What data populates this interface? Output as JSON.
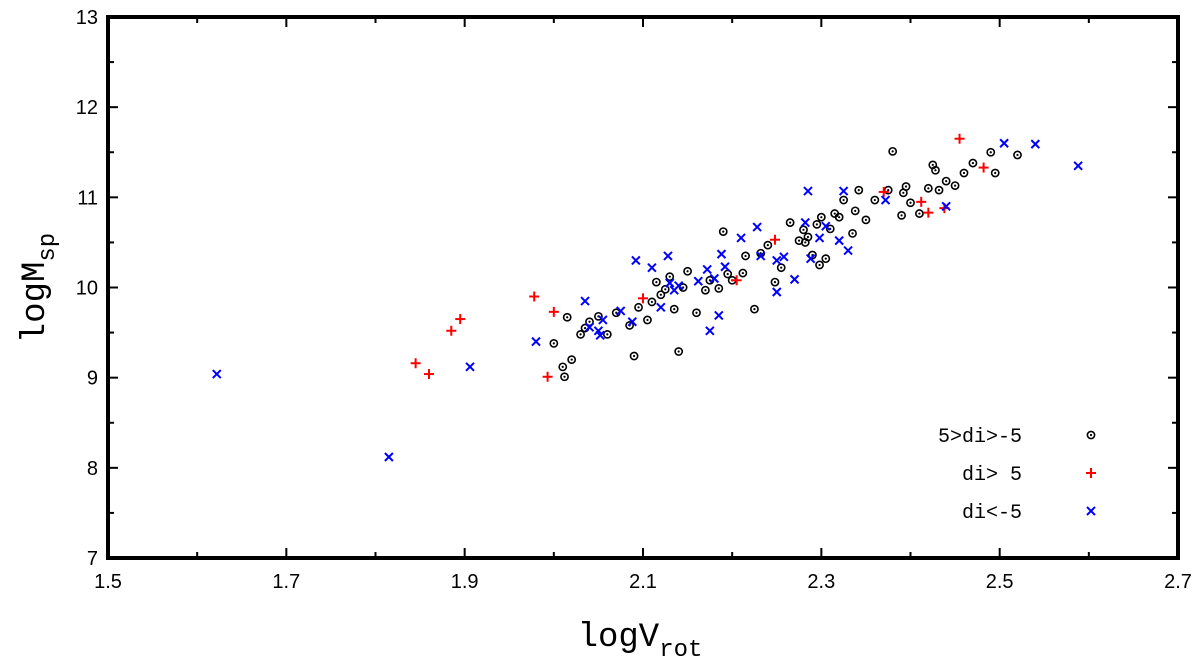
{
  "chart_data": {
    "type": "scatter",
    "title": "",
    "xlabel": {
      "main": "logV",
      "sub": "rot"
    },
    "ylabel": {
      "main": "logM",
      "sub": "sp"
    },
    "xlim": [
      1.5,
      2.7
    ],
    "ylim": [
      7,
      13
    ],
    "xticks": [
      "1.5",
      "1.7",
      "1.9",
      "2.1",
      "2.3",
      "2.5",
      "2.7"
    ],
    "yticks": [
      "7",
      "8",
      "9",
      "10",
      "11",
      "12",
      "13"
    ],
    "grid": false,
    "legend_position": "bottom-right",
    "series": [
      {
        "name": "5>di>-5",
        "marker": "circle-dot",
        "color": "#000000",
        "points": [
          [
            2.0,
            9.38
          ],
          [
            2.01,
            9.12
          ],
          [
            2.012,
            9.01
          ],
          [
            2.015,
            9.67
          ],
          [
            2.02,
            9.2
          ],
          [
            2.03,
            9.48
          ],
          [
            2.035,
            9.55
          ],
          [
            2.04,
            9.62
          ],
          [
            2.05,
            9.68
          ],
          [
            2.06,
            9.48
          ],
          [
            2.07,
            9.72
          ],
          [
            2.085,
            9.58
          ],
          [
            2.09,
            9.24
          ],
          [
            2.095,
            9.78
          ],
          [
            2.105,
            9.64
          ],
          [
            2.11,
            9.84
          ],
          [
            2.115,
            10.06
          ],
          [
            2.12,
            9.92
          ],
          [
            2.125,
            9.98
          ],
          [
            2.13,
            10.12
          ],
          [
            2.135,
            9.76
          ],
          [
            2.14,
            9.29
          ],
          [
            2.145,
            10.0
          ],
          [
            2.15,
            10.18
          ],
          [
            2.16,
            9.72
          ],
          [
            2.17,
            9.97
          ],
          [
            2.175,
            10.08
          ],
          [
            2.185,
            9.99
          ],
          [
            2.19,
            10.62
          ],
          [
            2.195,
            10.15
          ],
          [
            2.2,
            10.08
          ],
          [
            2.212,
            10.16
          ],
          [
            2.215,
            10.35
          ],
          [
            2.225,
            9.76
          ],
          [
            2.232,
            10.38
          ],
          [
            2.24,
            10.47
          ],
          [
            2.248,
            10.06
          ],
          [
            2.255,
            10.22
          ],
          [
            2.265,
            10.72
          ],
          [
            2.275,
            10.52
          ],
          [
            2.28,
            10.64
          ],
          [
            2.282,
            10.5
          ],
          [
            2.285,
            10.56
          ],
          [
            2.29,
            10.36
          ],
          [
            2.295,
            10.7
          ],
          [
            2.298,
            10.25
          ],
          [
            2.3,
            10.78
          ],
          [
            2.305,
            10.32
          ],
          [
            2.31,
            10.65
          ],
          [
            2.315,
            10.82
          ],
          [
            2.32,
            10.78
          ],
          [
            2.325,
            10.97
          ],
          [
            2.335,
            10.6
          ],
          [
            2.338,
            10.85
          ],
          [
            2.342,
            11.08
          ],
          [
            2.35,
            10.75
          ],
          [
            2.36,
            10.97
          ],
          [
            2.375,
            11.08
          ],
          [
            2.38,
            11.51
          ],
          [
            2.39,
            10.8
          ],
          [
            2.392,
            11.05
          ],
          [
            2.395,
            11.12
          ],
          [
            2.4,
            10.94
          ],
          [
            2.41,
            10.82
          ],
          [
            2.42,
            11.1
          ],
          [
            2.425,
            11.36
          ],
          [
            2.428,
            11.3
          ],
          [
            2.432,
            11.08
          ],
          [
            2.44,
            11.18
          ],
          [
            2.45,
            11.13
          ],
          [
            2.46,
            11.27
          ],
          [
            2.47,
            11.38
          ],
          [
            2.49,
            11.5
          ],
          [
            2.495,
            11.27
          ],
          [
            2.52,
            11.47
          ]
        ]
      },
      {
        "name": "di> 5",
        "marker": "plus",
        "color": "#ff0000",
        "points": [
          [
            1.845,
            9.16
          ],
          [
            1.86,
            9.04
          ],
          [
            1.885,
            9.52
          ],
          [
            1.895,
            9.65
          ],
          [
            1.978,
            9.9
          ],
          [
            1.993,
            9.01
          ],
          [
            2.0,
            9.73
          ],
          [
            2.1,
            9.88
          ],
          [
            2.205,
            10.08
          ],
          [
            2.248,
            10.53
          ],
          [
            2.37,
            11.06
          ],
          [
            2.412,
            10.95
          ],
          [
            2.42,
            10.83
          ],
          [
            2.438,
            10.88
          ],
          [
            2.455,
            11.65
          ],
          [
            2.482,
            11.33
          ]
        ]
      },
      {
        "name": "di<-5",
        "marker": "cross",
        "color": "#0000ff",
        "points": [
          [
            1.622,
            9.04
          ],
          [
            1.815,
            8.12
          ],
          [
            1.906,
            9.12
          ],
          [
            1.98,
            9.4
          ],
          [
            2.035,
            9.85
          ],
          [
            2.04,
            9.56
          ],
          [
            2.05,
            9.52
          ],
          [
            2.052,
            9.47
          ],
          [
            2.055,
            9.64
          ],
          [
            2.075,
            9.74
          ],
          [
            2.088,
            9.62
          ],
          [
            2.092,
            10.3
          ],
          [
            2.11,
            10.22
          ],
          [
            2.12,
            9.78
          ],
          [
            2.128,
            10.35
          ],
          [
            2.13,
            10.05
          ],
          [
            2.135,
            9.97
          ],
          [
            2.14,
            10.02
          ],
          [
            2.162,
            10.07
          ],
          [
            2.172,
            10.2
          ],
          [
            2.175,
            9.52
          ],
          [
            2.18,
            10.1
          ],
          [
            2.185,
            9.69
          ],
          [
            2.188,
            10.37
          ],
          [
            2.192,
            10.23
          ],
          [
            2.21,
            10.55
          ],
          [
            2.228,
            10.67
          ],
          [
            2.232,
            10.35
          ],
          [
            2.25,
            10.3
          ],
          [
            2.25,
            9.95
          ],
          [
            2.258,
            10.34
          ],
          [
            2.27,
            10.09
          ],
          [
            2.282,
            10.72
          ],
          [
            2.285,
            11.07
          ],
          [
            2.288,
            10.32
          ],
          [
            2.298,
            10.55
          ],
          [
            2.305,
            10.68
          ],
          [
            2.32,
            10.52
          ],
          [
            2.325,
            11.07
          ],
          [
            2.33,
            10.41
          ],
          [
            2.372,
            10.97
          ],
          [
            2.44,
            10.9
          ],
          [
            2.505,
            11.6
          ],
          [
            2.54,
            11.59
          ],
          [
            2.588,
            11.35
          ]
        ]
      }
    ]
  }
}
